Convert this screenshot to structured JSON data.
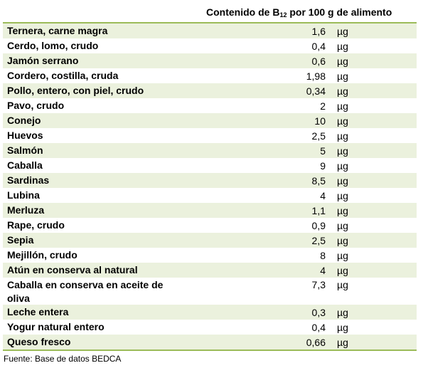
{
  "header": {
    "title_before_sub": "Contenido de B",
    "title_sub": "12",
    "title_after_sub": " por 100 g de alimento"
  },
  "rows": [
    {
      "name": "Ternera, carne magra",
      "value": "1,6",
      "unit": "µg"
    },
    {
      "name": "Cerdo, lomo, crudo",
      "value": "0,4",
      "unit": "µg"
    },
    {
      "name": "Jamón serrano",
      "value": "0,6",
      "unit": "µg"
    },
    {
      "name": "Cordero, costilla, cruda",
      "value": "1,98",
      "unit": "µg"
    },
    {
      "name": "Pollo, entero, con piel, crudo",
      "value": "0,34",
      "unit": "µg"
    },
    {
      "name": "Pavo, crudo",
      "value": "2",
      "unit": "µg"
    },
    {
      "name": "Conejo",
      "value": "10",
      "unit": "µg"
    },
    {
      "name": "Huevos",
      "value": "2,5",
      "unit": "µg"
    },
    {
      "name": "Salmón",
      "value": "5",
      "unit": "µg"
    },
    {
      "name": "Caballa",
      "value": "9",
      "unit": "µg"
    },
    {
      "name": "Sardinas",
      "value": "8,5",
      "unit": "µg"
    },
    {
      "name": "Lubina",
      "value": "4",
      "unit": "µg"
    },
    {
      "name": "Merluza",
      "value": "1,1",
      "unit": "µg"
    },
    {
      "name": "Rape, crudo",
      "value": "0,9",
      "unit": "µg"
    },
    {
      "name": "Sepia",
      "value": "2,5",
      "unit": "µg"
    },
    {
      "name": "Mejillón, crudo",
      "value": "8",
      "unit": "µg"
    },
    {
      "name": "Atún en conserva al natural",
      "value": "4",
      "unit": "µg"
    },
    {
      "name": "Caballa en conserva en aceite de oliva",
      "value": "7,3",
      "unit": "µg"
    },
    {
      "name": "Leche entera",
      "value": "0,3",
      "unit": "µg"
    },
    {
      "name": "Yogur natural entero",
      "value": "0,4",
      "unit": "µg"
    },
    {
      "name": "Queso fresco",
      "value": "0,66",
      "unit": "µg"
    }
  ],
  "source": "Fuente: Base de datos BEDCA",
  "colors": {
    "band": "#ebf1dd",
    "rule": "#9bbb59"
  }
}
